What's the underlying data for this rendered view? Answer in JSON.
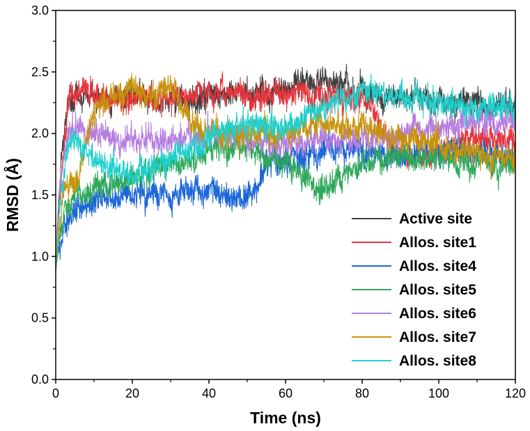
{
  "chart_data": {
    "type": "line",
    "title": "",
    "xlabel": "Time (ns)",
    "ylabel": "RMSD (Å)",
    "xlim": [
      0,
      120
    ],
    "ylim": [
      0.0,
      3.0
    ],
    "xticks": [
      0,
      20,
      40,
      60,
      80,
      100,
      120
    ],
    "yticks": [
      0.0,
      0.5,
      1.0,
      1.5,
      2.0,
      2.5,
      3.0
    ],
    "xtick_labels": [
      "0",
      "20",
      "40",
      "60",
      "80",
      "100",
      "120"
    ],
    "ytick_labels": [
      "0.0",
      "0.5",
      "1.0",
      "1.5",
      "2.0",
      "2.5",
      "3.0"
    ],
    "grid": false,
    "legend_position": "bottom-right",
    "series": [
      {
        "name": "Active site",
        "color": "#404040",
        "x": [
          0,
          1,
          2,
          3,
          5,
          10,
          20,
          30,
          40,
          50,
          60,
          70,
          80,
          90,
          100,
          110,
          120
        ],
        "values": [
          0.9,
          1.6,
          1.95,
          2.2,
          2.3,
          2.3,
          2.3,
          2.25,
          2.3,
          2.3,
          2.35,
          2.45,
          2.35,
          2.3,
          2.25,
          2.25,
          2.2
        ]
      },
      {
        "name": "Allos. site1",
        "color": "#e8333b",
        "x": [
          0,
          1,
          2,
          3,
          5,
          10,
          20,
          30,
          40,
          50,
          60,
          70,
          80,
          90,
          100,
          110,
          120
        ],
        "values": [
          0.9,
          1.5,
          1.9,
          2.2,
          2.35,
          2.3,
          2.3,
          2.3,
          2.35,
          2.3,
          2.35,
          2.3,
          2.3,
          1.8,
          1.85,
          2.0,
          1.9
        ]
      },
      {
        "name": "Allos. site4",
        "color": "#1c66d8",
        "x": [
          0,
          1,
          2,
          3,
          5,
          10,
          20,
          30,
          40,
          50,
          55,
          60,
          70,
          80,
          90,
          100,
          110,
          120
        ],
        "values": [
          0.85,
          1.1,
          1.2,
          1.3,
          1.35,
          1.45,
          1.5,
          1.5,
          1.55,
          1.45,
          1.75,
          1.8,
          1.85,
          1.85,
          1.8,
          1.85,
          1.85,
          1.8
        ]
      },
      {
        "name": "Allos. site5",
        "color": "#2ea85a",
        "x": [
          0,
          1,
          2,
          3,
          5,
          10,
          20,
          30,
          40,
          50,
          60,
          70,
          80,
          90,
          100,
          110,
          120
        ],
        "values": [
          0.85,
          1.2,
          1.3,
          1.45,
          1.5,
          1.55,
          1.6,
          1.75,
          1.85,
          1.9,
          1.75,
          1.55,
          1.75,
          1.8,
          1.8,
          1.75,
          1.75
        ]
      },
      {
        "name": "Allos. site6",
        "color": "#b57ddf",
        "x": [
          0,
          1,
          2,
          3,
          5,
          10,
          20,
          30,
          40,
          50,
          60,
          70,
          80,
          90,
          100,
          110,
          120
        ],
        "values": [
          0.9,
          1.5,
          1.8,
          2.0,
          2.05,
          2.0,
          1.95,
          1.95,
          2.0,
          1.95,
          1.9,
          1.95,
          1.95,
          2.0,
          2.05,
          2.1,
          2.1
        ]
      },
      {
        "name": "Allos. site7",
        "color": "#c7930a",
        "x": [
          0,
          1,
          2,
          3,
          5,
          10,
          15,
          20,
          25,
          30,
          35,
          40,
          50,
          60,
          70,
          80,
          90,
          100,
          110,
          120
        ],
        "values": [
          0.9,
          1.3,
          1.5,
          1.55,
          1.6,
          2.15,
          2.3,
          2.35,
          2.3,
          2.4,
          2.1,
          2.0,
          2.0,
          2.0,
          2.1,
          2.05,
          1.95,
          1.9,
          1.85,
          1.8
        ]
      },
      {
        "name": "Allos. site8",
        "color": "#1fd0cc",
        "x": [
          0,
          1,
          2,
          3,
          5,
          10,
          20,
          30,
          40,
          50,
          60,
          70,
          80,
          90,
          100,
          110,
          120
        ],
        "values": [
          0.9,
          1.4,
          1.7,
          1.85,
          1.95,
          1.8,
          1.65,
          1.8,
          1.95,
          2.1,
          2.05,
          2.2,
          2.35,
          2.3,
          2.25,
          2.2,
          2.2
        ]
      }
    ]
  }
}
